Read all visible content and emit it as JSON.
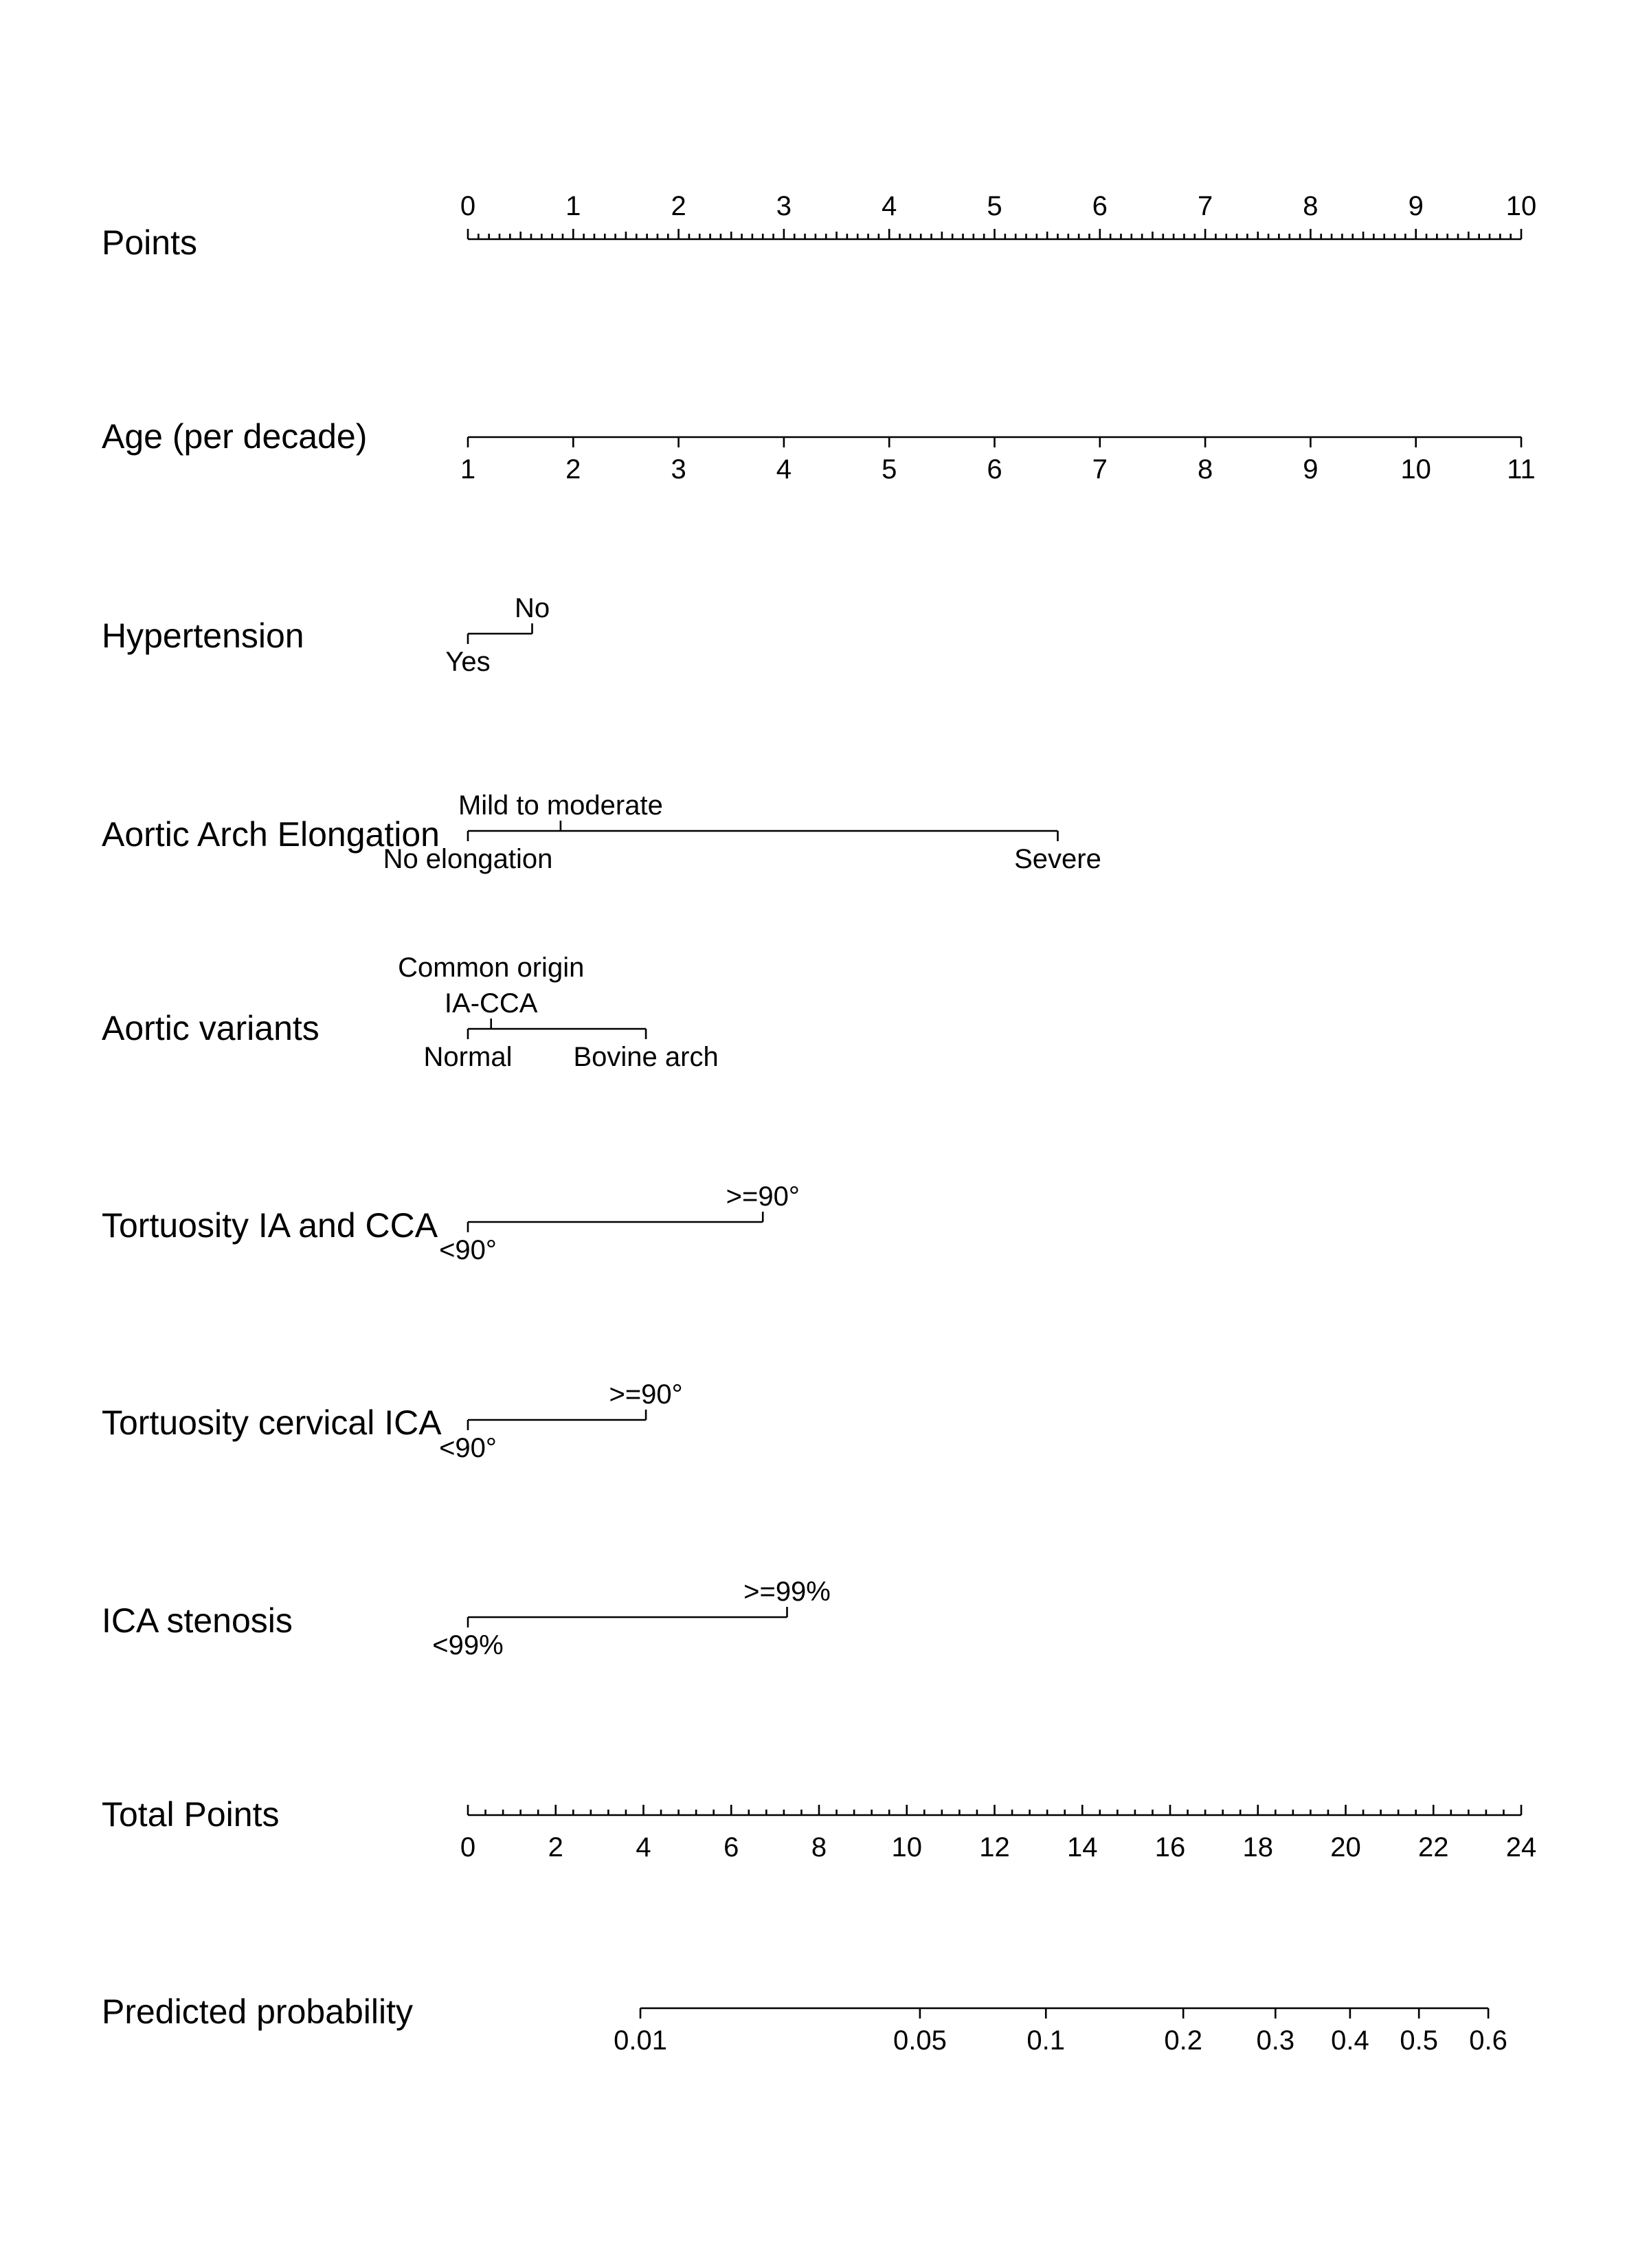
{
  "chart_data": {
    "type": "nomogram",
    "points_scale": {
      "min": 0,
      "max": 10
    },
    "rows": [
      {
        "label": "Points",
        "kind": "points",
        "labels_side": "above",
        "ticks": [
          {
            "value": 0,
            "label": "0"
          },
          {
            "value": 1,
            "label": "1"
          },
          {
            "value": 2,
            "label": "2"
          },
          {
            "value": 3,
            "label": "3"
          },
          {
            "value": 4,
            "label": "4"
          },
          {
            "value": 5,
            "label": "5"
          },
          {
            "value": 6,
            "label": "6"
          },
          {
            "value": 7,
            "label": "7"
          },
          {
            "value": 8,
            "label": "8"
          },
          {
            "value": 9,
            "label": "9"
          },
          {
            "value": 10,
            "label": "10"
          }
        ],
        "minor_step": 0.1
      },
      {
        "label": "Age (per decade)",
        "kind": "continuous",
        "labels_side": "below",
        "ticks": [
          {
            "value": 1,
            "points": 0,
            "label": "1"
          },
          {
            "value": 2,
            "points": 1,
            "label": "2"
          },
          {
            "value": 3,
            "points": 2,
            "label": "3"
          },
          {
            "value": 4,
            "points": 3,
            "label": "4"
          },
          {
            "value": 5,
            "points": 4,
            "label": "5"
          },
          {
            "value": 6,
            "points": 5,
            "label": "6"
          },
          {
            "value": 7,
            "points": 6,
            "label": "7"
          },
          {
            "value": 8,
            "points": 7,
            "label": "8"
          },
          {
            "value": 9,
            "points": 8,
            "label": "9"
          },
          {
            "value": 10,
            "points": 9,
            "label": "10"
          },
          {
            "value": 11,
            "points": 10,
            "label": "11"
          }
        ]
      },
      {
        "label": "Hypertension",
        "kind": "categorical",
        "levels": [
          {
            "label": "Yes",
            "points": 0,
            "side": "below"
          },
          {
            "label": "No",
            "points": 0.61,
            "side": "above"
          }
        ]
      },
      {
        "label": "Aortic Arch Elongation",
        "kind": "categorical",
        "levels": [
          {
            "label": "No elongation",
            "points": 0,
            "side": "below"
          },
          {
            "label": "Mild to moderate",
            "points": 0.88,
            "side": "above"
          },
          {
            "label": "Severe",
            "points": 5.6,
            "side": "below"
          }
        ]
      },
      {
        "label": "Aortic variants",
        "kind": "categorical",
        "levels": [
          {
            "label": "Normal",
            "points": 0,
            "side": "below"
          },
          {
            "label": "Common origin\nIA-CCA",
            "points": 0.22,
            "side": "above"
          },
          {
            "label": "Bovine arch",
            "points": 1.69,
            "side": "below"
          }
        ]
      },
      {
        "label": "Tortuosity IA and CCA",
        "kind": "categorical",
        "levels": [
          {
            "label": "<90°",
            "points": 0,
            "side": "below"
          },
          {
            "label": ">=90°",
            "points": 2.8,
            "side": "above"
          }
        ]
      },
      {
        "label": "Tortuosity cervical ICA",
        "kind": "categorical",
        "levels": [
          {
            "label": "<90°",
            "points": 0,
            "side": "below"
          },
          {
            "label": ">=90°",
            "points": 1.69,
            "side": "above"
          }
        ]
      },
      {
        "label": "ICA stenosis",
        "kind": "categorical",
        "levels": [
          {
            "label": "<99%",
            "points": 0,
            "side": "below"
          },
          {
            "label": ">=99%",
            "points": 3.03,
            "side": "above"
          }
        ]
      },
      {
        "label": "Total Points",
        "kind": "total",
        "labels_side": "below",
        "range": [
          0,
          24
        ],
        "ticks": [
          {
            "value": 0,
            "label": "0"
          },
          {
            "value": 2,
            "label": "2"
          },
          {
            "value": 4,
            "label": "4"
          },
          {
            "value": 6,
            "label": "6"
          },
          {
            "value": 8,
            "label": "8"
          },
          {
            "value": 10,
            "label": "10"
          },
          {
            "value": 12,
            "label": "12"
          },
          {
            "value": 14,
            "label": "14"
          },
          {
            "value": 16,
            "label": "16"
          },
          {
            "value": 18,
            "label": "18"
          },
          {
            "value": 20,
            "label": "20"
          },
          {
            "value": 22,
            "label": "22"
          },
          {
            "value": 24,
            "label": "24"
          }
        ],
        "minor_step": 0.4
      },
      {
        "label": "Predicted probability",
        "kind": "probability",
        "labels_side": "below",
        "ticks": [
          {
            "value": 0.01,
            "total_points": 3.93,
            "label": "0.01"
          },
          {
            "value": 0.05,
            "total_points": 10.3,
            "label": "0.05"
          },
          {
            "value": 0.1,
            "total_points": 13.17,
            "label": "0.1"
          },
          {
            "value": 0.2,
            "total_points": 16.3,
            "label": "0.2"
          },
          {
            "value": 0.3,
            "total_points": 18.4,
            "label": "0.3"
          },
          {
            "value": 0.4,
            "total_points": 20.1,
            "label": "0.4"
          },
          {
            "value": 0.5,
            "total_points": 21.67,
            "label": "0.5"
          },
          {
            "value": 0.6,
            "total_points": 23.25,
            "label": "0.6"
          }
        ]
      }
    ]
  }
}
